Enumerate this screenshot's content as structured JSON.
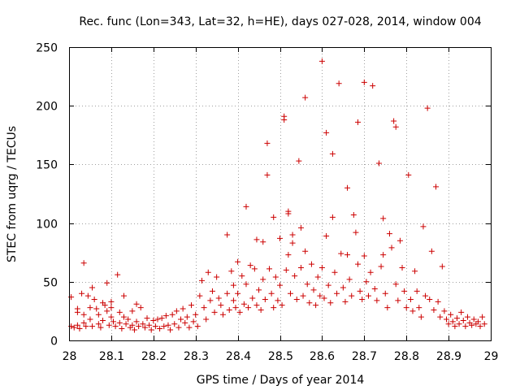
{
  "chart_data": {
    "type": "scatter",
    "title": "Rec. func (Lon=343, Lat=32, h=HE), days 027-028, 2014, window 004",
    "xlabel": "GPS time / Days of year 2014",
    "ylabel": "STEC from uqrg / TECUs",
    "xlim": [
      28,
      29
    ],
    "ylim": [
      0,
      250
    ],
    "x_ticks": [
      "28",
      "28.1",
      "28.2",
      "28.3",
      "28.4",
      "28.5",
      "28.6",
      "28.7",
      "28.8",
      "28.9",
      "29"
    ],
    "y_ticks": [
      "0",
      "50",
      "100",
      "150",
      "200",
      "250"
    ],
    "grid": true,
    "marker": "+",
    "color": "#cc0000",
    "series": [
      {
        "name": "STEC",
        "points": [
          [
            28.005,
            37
          ],
          [
            28.005,
            12
          ],
          [
            28.012,
            11
          ],
          [
            28.02,
            27
          ],
          [
            28.02,
            24
          ],
          [
            28.02,
            13
          ],
          [
            28.025,
            10
          ],
          [
            28.03,
            40
          ],
          [
            28.035,
            66
          ],
          [
            28.035,
            22
          ],
          [
            28.035,
            15
          ],
          [
            28.04,
            12
          ],
          [
            28.045,
            38
          ],
          [
            28.05,
            28
          ],
          [
            28.05,
            18
          ],
          [
            28.055,
            45
          ],
          [
            28.055,
            12
          ],
          [
            28.06,
            35
          ],
          [
            28.065,
            27
          ],
          [
            28.07,
            22
          ],
          [
            28.07,
            14
          ],
          [
            28.075,
            11
          ],
          [
            28.08,
            32
          ],
          [
            28.08,
            17
          ],
          [
            28.085,
            30
          ],
          [
            28.09,
            49
          ],
          [
            28.09,
            25
          ],
          [
            28.095,
            13
          ],
          [
            28.1,
            33
          ],
          [
            28.1,
            28
          ],
          [
            28.1,
            20
          ],
          [
            28.105,
            16
          ],
          [
            28.11,
            12
          ],
          [
            28.115,
            56
          ],
          [
            28.12,
            24
          ],
          [
            28.12,
            15
          ],
          [
            28.125,
            10
          ],
          [
            28.13,
            38
          ],
          [
            28.13,
            20
          ],
          [
            28.135,
            14
          ],
          [
            28.14,
            18
          ],
          [
            28.145,
            11
          ],
          [
            28.15,
            25
          ],
          [
            28.15,
            13
          ],
          [
            28.155,
            9
          ],
          [
            28.16,
            31
          ],
          [
            28.16,
            16
          ],
          [
            28.165,
            12
          ],
          [
            28.17,
            28
          ],
          [
            28.175,
            14
          ],
          [
            28.18,
            11
          ],
          [
            28.185,
            19
          ],
          [
            28.19,
            13
          ],
          [
            28.195,
            9
          ],
          [
            28.2,
            17
          ],
          [
            28.205,
            12
          ],
          [
            28.21,
            18
          ],
          [
            28.215,
            10
          ],
          [
            28.22,
            19
          ],
          [
            28.225,
            12
          ],
          [
            28.23,
            21
          ],
          [
            28.235,
            13
          ],
          [
            28.24,
            9
          ],
          [
            28.245,
            22
          ],
          [
            28.25,
            14
          ],
          [
            28.255,
            25
          ],
          [
            28.26,
            11
          ],
          [
            28.265,
            18
          ],
          [
            28.27,
            27
          ],
          [
            28.275,
            15
          ],
          [
            28.28,
            20
          ],
          [
            28.285,
            11
          ],
          [
            28.29,
            30
          ],
          [
            28.295,
            16
          ],
          [
            28.3,
            22
          ],
          [
            28.305,
            12
          ],
          [
            28.31,
            38
          ],
          [
            28.315,
            51
          ],
          [
            28.32,
            28
          ],
          [
            28.325,
            18
          ],
          [
            28.33,
            58
          ],
          [
            28.335,
            34
          ],
          [
            28.34,
            42
          ],
          [
            28.345,
            24
          ],
          [
            28.35,
            54
          ],
          [
            28.355,
            36
          ],
          [
            28.36,
            30
          ],
          [
            28.365,
            22
          ],
          [
            28.375,
            90
          ],
          [
            28.375,
            40
          ],
          [
            28.38,
            26
          ],
          [
            28.385,
            59
          ],
          [
            28.39,
            47
          ],
          [
            28.39,
            34
          ],
          [
            28.395,
            28
          ],
          [
            28.4,
            67
          ],
          [
            28.4,
            40
          ],
          [
            28.405,
            24
          ],
          [
            28.41,
            55
          ],
          [
            28.415,
            31
          ],
          [
            28.42,
            114
          ],
          [
            28.42,
            48
          ],
          [
            28.425,
            28
          ],
          [
            28.43,
            64
          ],
          [
            28.435,
            36
          ],
          [
            28.44,
            61
          ],
          [
            28.445,
            86
          ],
          [
            28.445,
            30
          ],
          [
            28.45,
            43
          ],
          [
            28.455,
            26
          ],
          [
            28.46,
            84
          ],
          [
            28.46,
            52
          ],
          [
            28.465,
            35
          ],
          [
            28.47,
            168
          ],
          [
            28.47,
            141
          ],
          [
            28.475,
            61
          ],
          [
            28.48,
            40
          ],
          [
            28.485,
            105
          ],
          [
            28.485,
            28
          ],
          [
            28.49,
            54
          ],
          [
            28.495,
            34
          ],
          [
            28.5,
            87
          ],
          [
            28.5,
            47
          ],
          [
            28.505,
            30
          ],
          [
            28.51,
            191
          ],
          [
            28.51,
            188
          ],
          [
            28.515,
            60
          ],
          [
            28.52,
            110
          ],
          [
            28.52,
            108
          ],
          [
            28.52,
            73
          ],
          [
            28.525,
            40
          ],
          [
            28.53,
            90
          ],
          [
            28.53,
            83
          ],
          [
            28.535,
            55
          ],
          [
            28.54,
            35
          ],
          [
            28.545,
            153
          ],
          [
            28.55,
            96
          ],
          [
            28.55,
            62
          ],
          [
            28.555,
            38
          ],
          [
            28.56,
            207
          ],
          [
            28.56,
            76
          ],
          [
            28.565,
            48
          ],
          [
            28.57,
            32
          ],
          [
            28.575,
            65
          ],
          [
            28.58,
            43
          ],
          [
            28.585,
            30
          ],
          [
            28.59,
            54
          ],
          [
            28.595,
            38
          ],
          [
            28.6,
            238
          ],
          [
            28.6,
            62
          ],
          [
            28.605,
            36
          ],
          [
            28.61,
            177
          ],
          [
            28.61,
            89
          ],
          [
            28.615,
            47
          ],
          [
            28.62,
            32
          ],
          [
            28.625,
            159
          ],
          [
            28.625,
            105
          ],
          [
            28.63,
            58
          ],
          [
            28.635,
            40
          ],
          [
            28.64,
            219
          ],
          [
            28.645,
            74
          ],
          [
            28.65,
            45
          ],
          [
            28.655,
            33
          ],
          [
            28.66,
            130
          ],
          [
            28.66,
            73
          ],
          [
            28.665,
            52
          ],
          [
            28.67,
            38
          ],
          [
            28.675,
            107
          ],
          [
            28.68,
            92
          ],
          [
            28.685,
            186
          ],
          [
            28.685,
            65
          ],
          [
            28.69,
            42
          ],
          [
            28.695,
            35
          ],
          [
            28.7,
            220
          ],
          [
            28.7,
            72
          ],
          [
            28.705,
            50
          ],
          [
            28.71,
            38
          ],
          [
            28.715,
            58
          ],
          [
            28.72,
            217
          ],
          [
            28.725,
            44
          ],
          [
            28.73,
            34
          ],
          [
            28.735,
            151
          ],
          [
            28.74,
            63
          ],
          [
            28.745,
            104
          ],
          [
            28.745,
            73
          ],
          [
            28.75,
            40
          ],
          [
            28.755,
            28
          ],
          [
            28.76,
            91
          ],
          [
            28.765,
            79
          ],
          [
            28.77,
            187
          ],
          [
            28.775,
            182
          ],
          [
            28.775,
            48
          ],
          [
            28.78,
            34
          ],
          [
            28.785,
            85
          ],
          [
            28.79,
            62
          ],
          [
            28.795,
            42
          ],
          [
            28.8,
            28
          ],
          [
            28.805,
            141
          ],
          [
            28.81,
            35
          ],
          [
            28.815,
            25
          ],
          [
            28.82,
            59
          ],
          [
            28.825,
            42
          ],
          [
            28.83,
            28
          ],
          [
            28.835,
            20
          ],
          [
            28.84,
            97
          ],
          [
            28.845,
            38
          ],
          [
            28.85,
            198
          ],
          [
            28.855,
            35
          ],
          [
            28.86,
            76
          ],
          [
            28.865,
            26
          ],
          [
            28.87,
            131
          ],
          [
            28.875,
            33
          ],
          [
            28.88,
            20
          ],
          [
            28.885,
            63
          ],
          [
            28.89,
            25
          ],
          [
            28.895,
            18
          ],
          [
            28.9,
            14
          ],
          [
            28.905,
            22
          ],
          [
            28.91,
            16
          ],
          [
            28.915,
            12
          ],
          [
            28.92,
            19
          ],
          [
            28.925,
            14
          ],
          [
            28.93,
            24
          ],
          [
            28.935,
            17
          ],
          [
            28.94,
            12
          ],
          [
            28.945,
            20
          ],
          [
            28.95,
            15
          ],
          [
            28.955,
            13
          ],
          [
            28.96,
            18
          ],
          [
            28.965,
            14
          ],
          [
            28.97,
            16
          ],
          [
            28.975,
            12
          ],
          [
            28.98,
            20
          ],
          [
            28.985,
            14
          ]
        ]
      }
    ]
  }
}
